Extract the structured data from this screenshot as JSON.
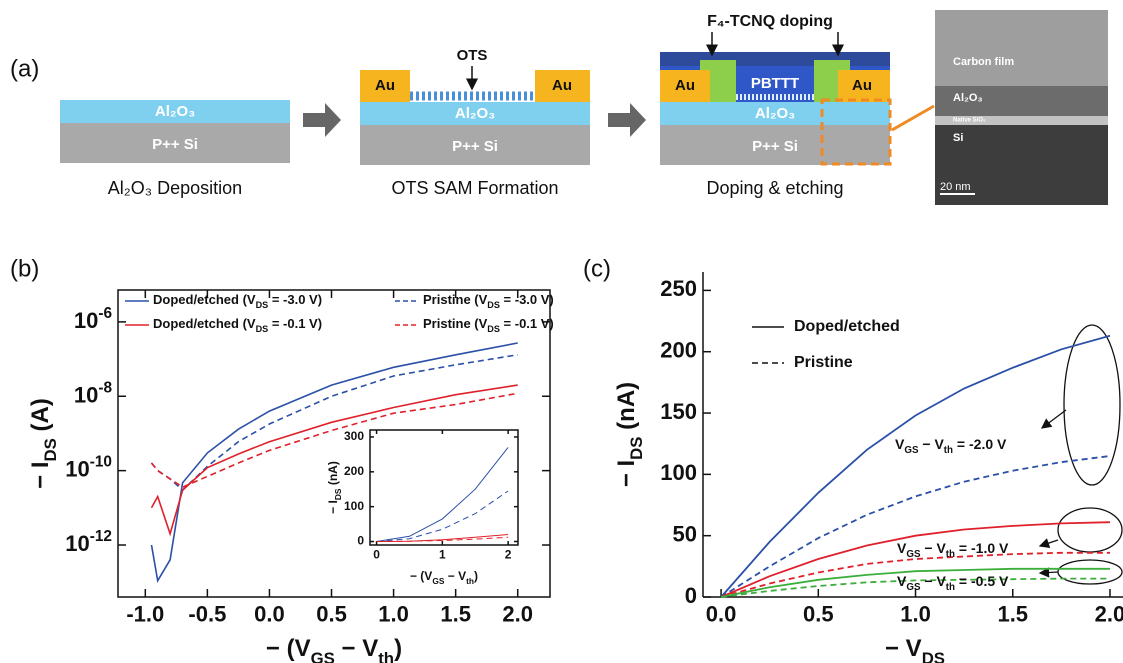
{
  "panel_labels": [
    "(a)",
    "(b)",
    "(c)"
  ],
  "panel_a": {
    "steps": [
      {
        "oxide": "Al₂O₃",
        "substrate": "P++ Si",
        "caption": "Al₂O₃ Deposition"
      },
      {
        "oxide": "Al₂O₃",
        "substrate": "P++ Si",
        "caption": "OTS SAM Formation",
        "electrodes": [
          "Au",
          "Au"
        ],
        "monolayer": "OTS"
      },
      {
        "oxide": "Al₂O₃",
        "substrate": "P++ Si",
        "caption": "Doping & etching",
        "electrodes": [
          "Au",
          "Au"
        ],
        "semiconductor": "PBTTT",
        "dopant": "F₄-TCNQ doping"
      }
    ],
    "tem": {
      "layers": [
        "Carbon film",
        "Al₂O₃",
        "Native SiO₂",
        "Si"
      ],
      "scale_bar": "20 nm"
    }
  },
  "chart_data": [
    {
      "type": "line",
      "yscale": "log",
      "xlabel": [
        "− (V",
        "GS",
        " − V",
        "th",
        ")"
      ],
      "ylabel": [
        "− I",
        "DS",
        " (A)"
      ],
      "x": [
        -0.95,
        -0.9,
        -0.8,
        -0.7,
        -0.5,
        -0.25,
        0,
        0.5,
        1.0,
        1.5,
        2.0
      ],
      "series": [
        {
          "name": [
            "Doped/etched  (V",
            "DS",
            " = -3.0 V)"
          ],
          "color": "#2b50a8",
          "dash": false,
          "values": [
            1e-12,
            1.1e-13,
            4e-13,
            4.7e-11,
            3e-10,
            1.3e-09,
            4e-09,
            2e-08,
            6e-08,
            1.3e-07,
            2.7e-07
          ]
        },
        {
          "name": [
            "Pristine (V",
            "DS",
            " = -3.0 V)"
          ],
          "color": "#2b50a8",
          "dash": true,
          "values": [
            1.6e-10,
            1e-10,
            6e-11,
            3e-11,
            1.3e-10,
            6e-10,
            1.8e-09,
            1e-08,
            3.5e-08,
            7e-08,
            1.3e-07
          ]
        },
        {
          "name": [
            "Doped/etched  (V",
            "DS",
            " = -0.1 V)"
          ],
          "color": "#e0202a",
          "dash": false,
          "values": [
            1e-11,
            2e-11,
            2e-12,
            3e-11,
            1.2e-10,
            2.8e-10,
            6e-10,
            2e-09,
            5e-09,
            1.1e-08,
            2e-08
          ]
        },
        {
          "name": [
            "Pristine (V",
            "DS",
            " = -0.1 V)"
          ],
          "color": "#e0202a",
          "dash": true,
          "values": [
            1.6e-10,
            1e-10,
            6e-11,
            3.6e-11,
            7e-11,
            1.6e-10,
            3.5e-10,
            1.2e-09,
            3.5e-09,
            6e-09,
            1.2e-08
          ]
        }
      ],
      "xlim": [
        -1.22,
        2.26
      ],
      "ylim": [
        4e-14,
        7.2e-06
      ],
      "xticks": [
        {
          "value": -1,
          "label": "-1.0"
        },
        {
          "value": -0.5,
          "label": "-0.5"
        },
        {
          "value": 0,
          "label": "0.0"
        },
        0.5,
        {
          "value": 1,
          "label": "1.0"
        },
        1.5,
        {
          "value": 2,
          "label": "2.0"
        }
      ],
      "yticks": [
        {
          "value": 1e-12,
          "label": [
            "10",
            "-12"
          ]
        },
        {
          "value": 1e-10,
          "label": [
            "10",
            "-10"
          ]
        },
        {
          "value": 1e-08,
          "label": [
            "10",
            "-8"
          ]
        },
        {
          "value": 1e-06,
          "label": [
            "10",
            "-6"
          ]
        }
      ]
    },
    {
      "type": "line",
      "xlabel": [
        "− (V",
        "GS",
        " − V",
        "th",
        ")"
      ],
      "ylabel": [
        "− I",
        "DS",
        " (nA)"
      ],
      "x": [
        0,
        0.5,
        1,
        1.5,
        2
      ],
      "series": [
        {
          "color": "#2b50a8",
          "dash": false,
          "values": [
            0,
            15,
            65,
            150,
            270
          ]
        },
        {
          "color": "#2b50a8",
          "dash": true,
          "values": [
            0,
            8,
            35,
            80,
            145
          ]
        },
        {
          "color": "#e0202a",
          "dash": false,
          "values": [
            0,
            1,
            5,
            12,
            20
          ]
        },
        {
          "color": "#e0202a",
          "dash": true,
          "values": [
            0,
            1,
            3,
            7,
            12
          ]
        }
      ],
      "xlim": [
        -0.1,
        2.15
      ],
      "ylim": [
        -10,
        320
      ],
      "xticks": [
        0,
        1,
        2
      ],
      "yticks": [
        0,
        100,
        200,
        300
      ]
    },
    {
      "type": "line",
      "xlabel": [
        "− V",
        "DS"
      ],
      "ylabel": [
        "− I",
        "DS",
        " (nA)"
      ],
      "x": [
        0,
        0.25,
        0.5,
        0.75,
        1.0,
        1.25,
        1.5,
        1.75,
        2.0
      ],
      "series": [
        {
          "color": "#2b50a8",
          "dash": false,
          "values": [
            0,
            45,
            85,
            120,
            148,
            170,
            187,
            202,
            213
          ]
        },
        {
          "color": "#2b50a8",
          "dash": true,
          "values": [
            0,
            25,
            48,
            67,
            82,
            94,
            103,
            110,
            115
          ]
        },
        {
          "color": "#e0202a",
          "dash": false,
          "values": [
            0,
            17,
            31,
            42,
            50,
            55,
            58,
            60,
            61
          ]
        },
        {
          "color": "#e0202a",
          "dash": true,
          "values": [
            0,
            11,
            20,
            27,
            31,
            33,
            35,
            36,
            36
          ]
        },
        {
          "color": "#3cae3c",
          "dash": false,
          "values": [
            0,
            8,
            14,
            18,
            21,
            22,
            23,
            23,
            23
          ]
        },
        {
          "color": "#3cae3c",
          "dash": true,
          "values": [
            0,
            5,
            9,
            12,
            13.5,
            14,
            14.5,
            15,
            15
          ]
        }
      ],
      "legend": [
        {
          "label": "Doped/etched",
          "dash": false
        },
        {
          "label": "Pristine",
          "dash": true
        }
      ],
      "annotations": [
        [
          "V",
          "GS",
          " − V",
          "th",
          "  = -2.0 V"
        ],
        [
          "V",
          "GS",
          " − V",
          "th",
          "  = -1.0 V"
        ],
        [
          "V",
          "GS",
          " − V",
          "th",
          "  = -0.5 V"
        ]
      ],
      "xlim": [
        -0.093,
        2.067
      ],
      "ylim": [
        0,
        265
      ],
      "xticks": [
        {
          "value": 0,
          "label": "0.0"
        },
        0.5,
        {
          "value": 1,
          "label": "1.0"
        },
        1.5,
        {
          "value": 2,
          "label": "2.0"
        }
      ],
      "yticks": [
        0,
        50,
        100,
        150,
        200,
        250
      ]
    }
  ]
}
